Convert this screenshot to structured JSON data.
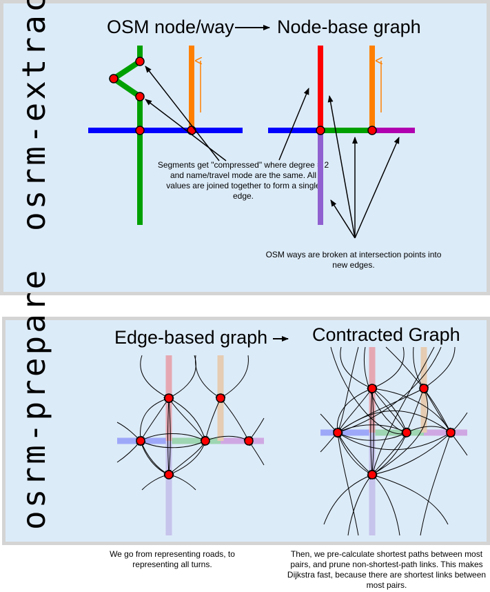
{
  "extract": {
    "side_label": "osrm-extract",
    "title_left": "OSM node/way",
    "title_right": "Node-base graph",
    "note_compressed": "Segments get \"compressed\" where degree = 2 and name/travel mode are the same.  All values are joined together to form a single edge.",
    "note_broken": "OSM ways are broken at intersection points into new edges."
  },
  "prepare": {
    "side_label": "osrm-prepare",
    "title_left": "Edge-based graph",
    "title_right": "Contracted Graph",
    "caption_left": "We go from representing roads, to representing all turns.",
    "caption_right": "Then, we pre-calculate shortest paths between most pairs, and prune non-shortest-path links.  This makes Dijkstra fast, because there are shortest links between most pairs."
  },
  "colors": {
    "panel_bg": "#dcebf8",
    "panel_border": "#d4d4d4",
    "road_blue": "#0000ff",
    "road_green": "#00a000",
    "road_orange": "#ff8000",
    "road_red": "#ff0000",
    "road_purple": "#9060d0",
    "road_magenta": "#b000b0",
    "node_fill": "#ff0000"
  }
}
